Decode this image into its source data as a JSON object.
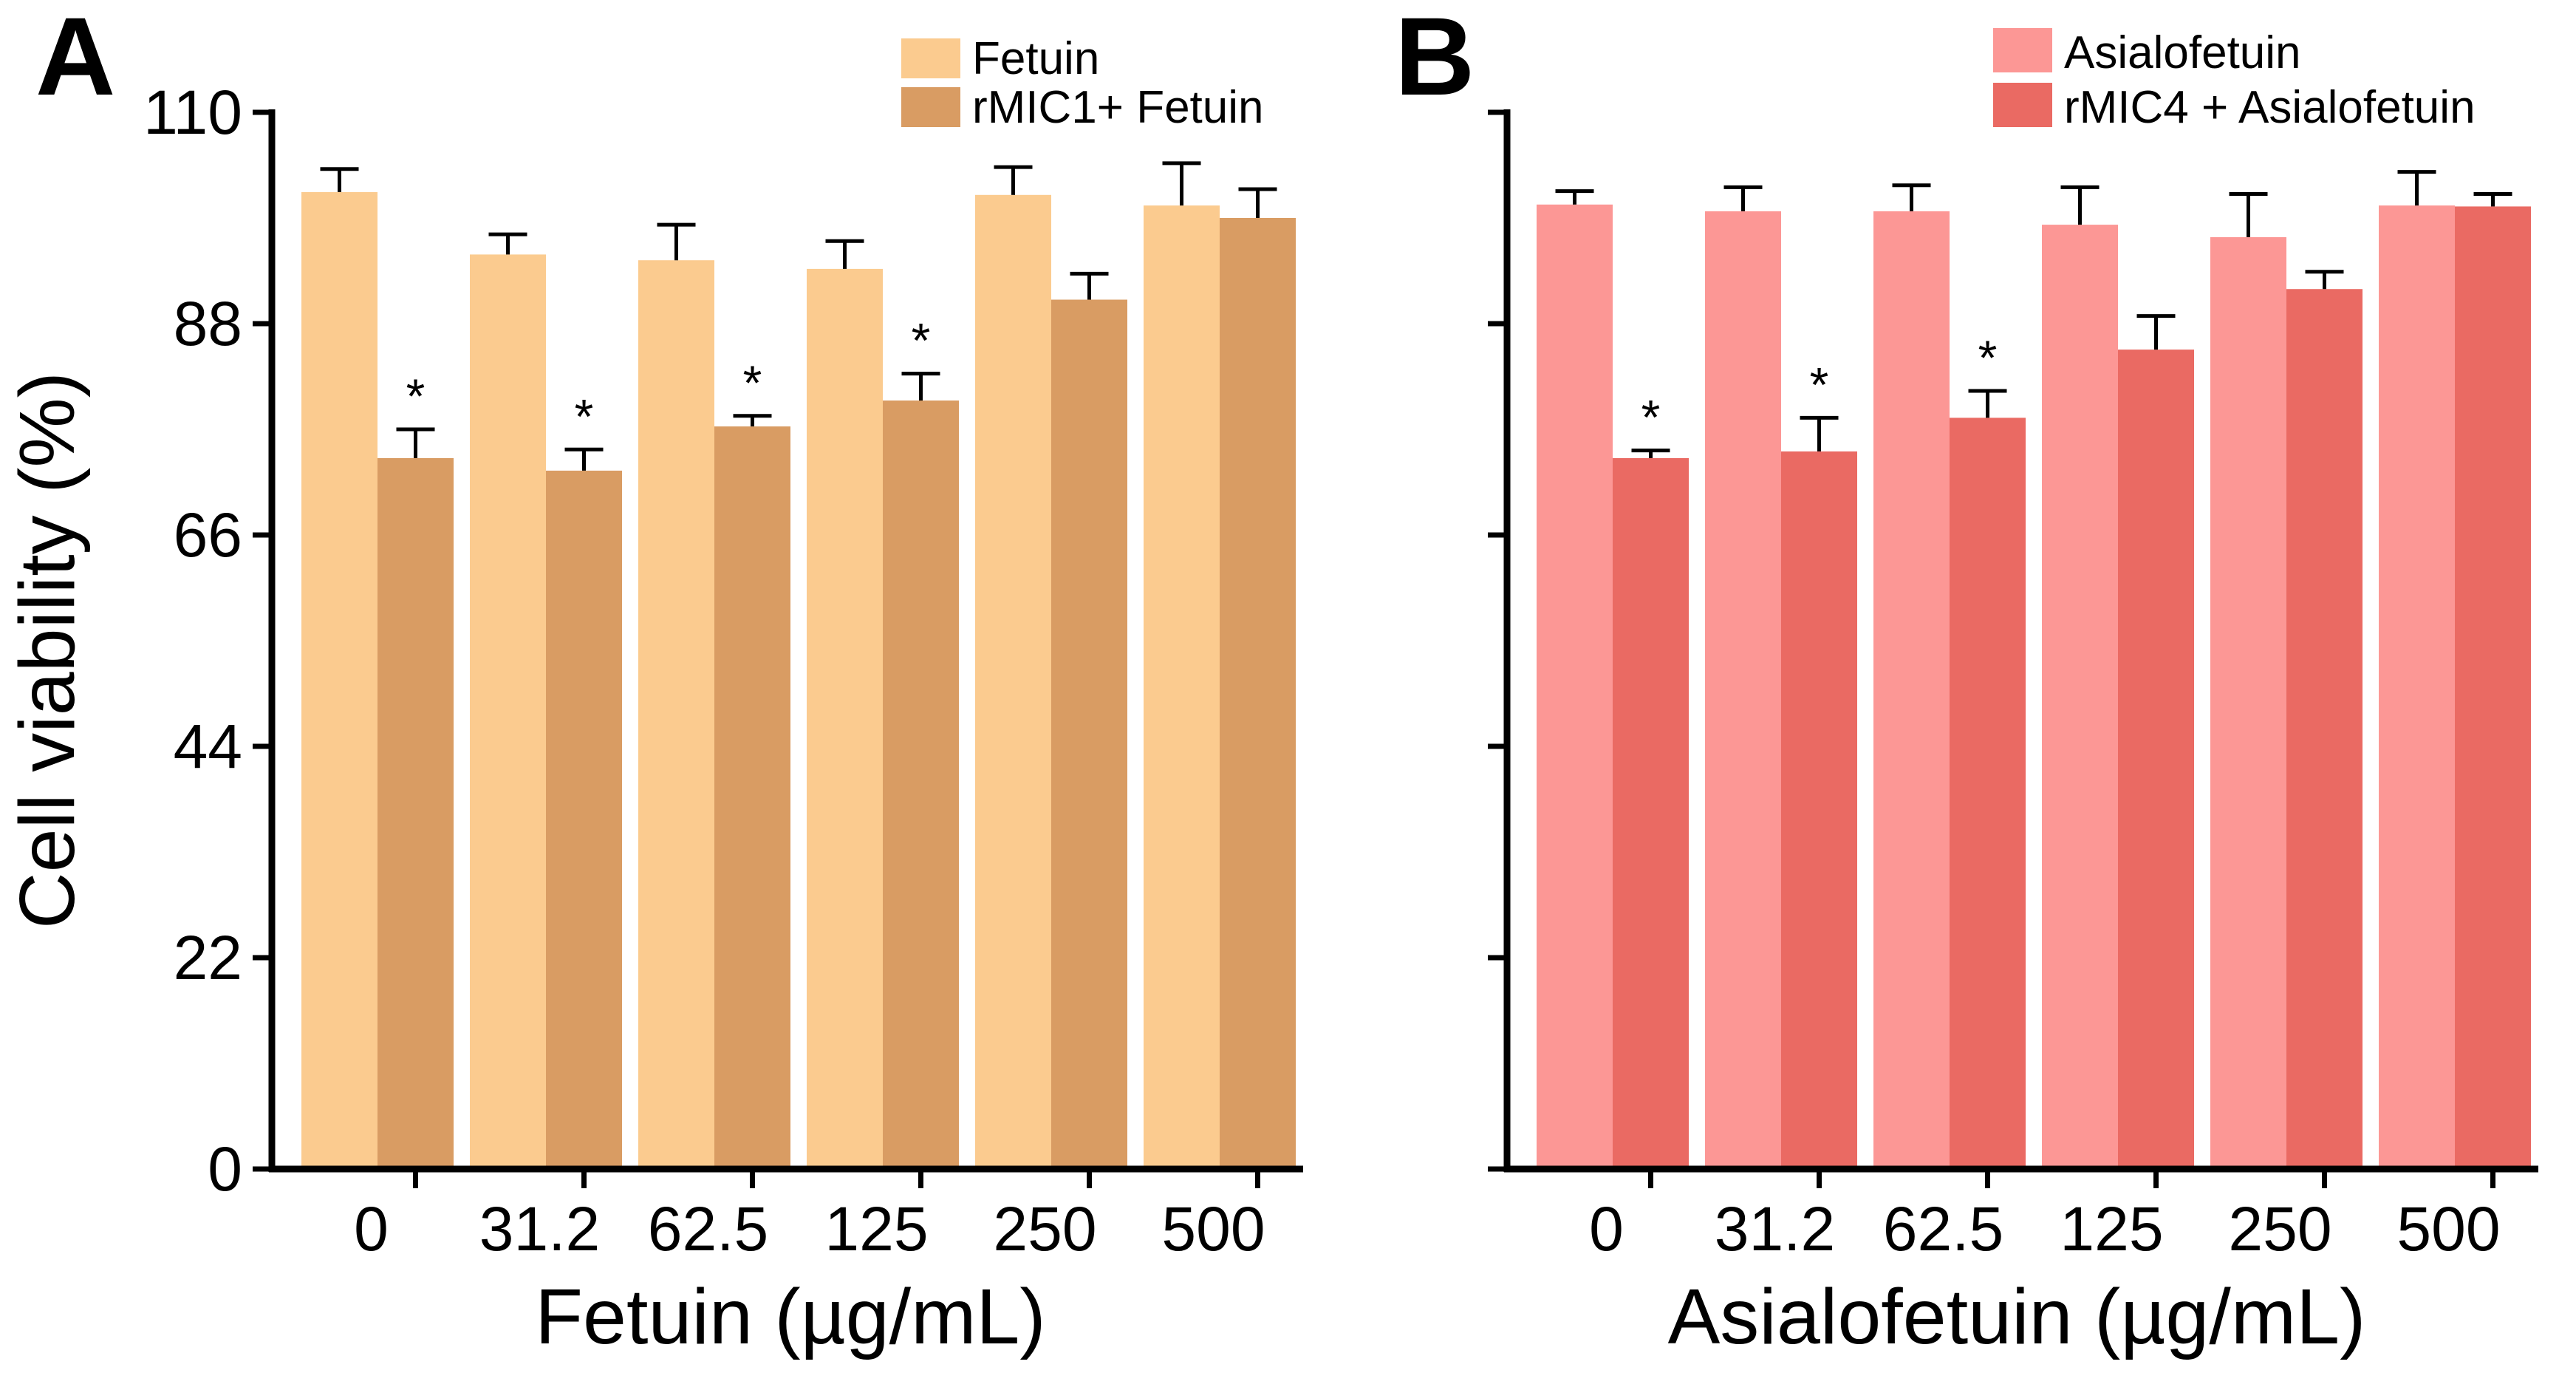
{
  "chart_data": [
    {
      "panel": "A",
      "type": "bar",
      "title": "",
      "xlabel": "Fetuin (µg/mL)",
      "ylabel": "Cell viability (%)",
      "ylim": [
        0,
        110
      ],
      "yticks": [
        0,
        22,
        44,
        66,
        88,
        110
      ],
      "ytick_labels": [
        "0",
        "22",
        "44",
        "66",
        "88",
        "110"
      ],
      "categories": [
        "0",
        "31.2",
        "62.5",
        "125",
        "250",
        "500"
      ],
      "legend_position": "top-right",
      "series": [
        {
          "name": "Fetuin",
          "color": "#FBCB8F",
          "values": [
            101.7,
            95.2,
            94.6,
            93.7,
            101.4,
            100.3
          ],
          "errors": [
            2.4,
            2.1,
            3.7,
            2.9,
            2.9,
            4.4
          ]
        },
        {
          "name": "rMIC1+ Fetuin",
          "color": "#D99C63",
          "values": [
            74.0,
            72.7,
            77.3,
            80.0,
            90.5,
            99.0
          ],
          "errors": [
            3.0,
            2.2,
            1.1,
            2.8,
            2.7,
            3.0
          ]
        }
      ],
      "significance": [
        {
          "series": 1,
          "category": 0,
          "label": "*"
        },
        {
          "series": 1,
          "category": 1,
          "label": "*"
        },
        {
          "series": 1,
          "category": 2,
          "label": "*"
        },
        {
          "series": 1,
          "category": 3,
          "label": "*"
        }
      ]
    },
    {
      "panel": "B",
      "type": "bar",
      "title": "",
      "xlabel": "Asialofetuin (µg/mL)",
      "ylabel": "",
      "ylim": [
        0,
        110
      ],
      "yticks": [
        0,
        22,
        44,
        66,
        88,
        110
      ],
      "ytick_labels": [],
      "categories": [
        "0",
        "31.2",
        "62.5",
        "125",
        "250",
        "500"
      ],
      "legend_position": "top-right",
      "series": [
        {
          "name": "Asialofetuin",
          "color": "#FC9795",
          "values": [
            100.4,
            99.7,
            99.7,
            98.3,
            97.0,
            100.3
          ],
          "errors": [
            1.4,
            2.5,
            2.7,
            3.9,
            4.5,
            3.5
          ]
        },
        {
          "name": "rMIC4 + Asialofetuin",
          "color": "#EA6A63",
          "values": [
            74.0,
            74.7,
            78.2,
            85.3,
            91.6,
            100.2
          ],
          "errors": [
            0.8,
            3.5,
            2.8,
            3.5,
            1.8,
            1.3
          ]
        }
      ],
      "significance": [
        {
          "series": 1,
          "category": 0,
          "label": "*"
        },
        {
          "series": 1,
          "category": 1,
          "label": "*"
        },
        {
          "series": 1,
          "category": 2,
          "label": "*"
        }
      ]
    }
  ],
  "panels": {
    "a": {
      "letter": "A"
    },
    "b": {
      "letter": "B"
    }
  }
}
